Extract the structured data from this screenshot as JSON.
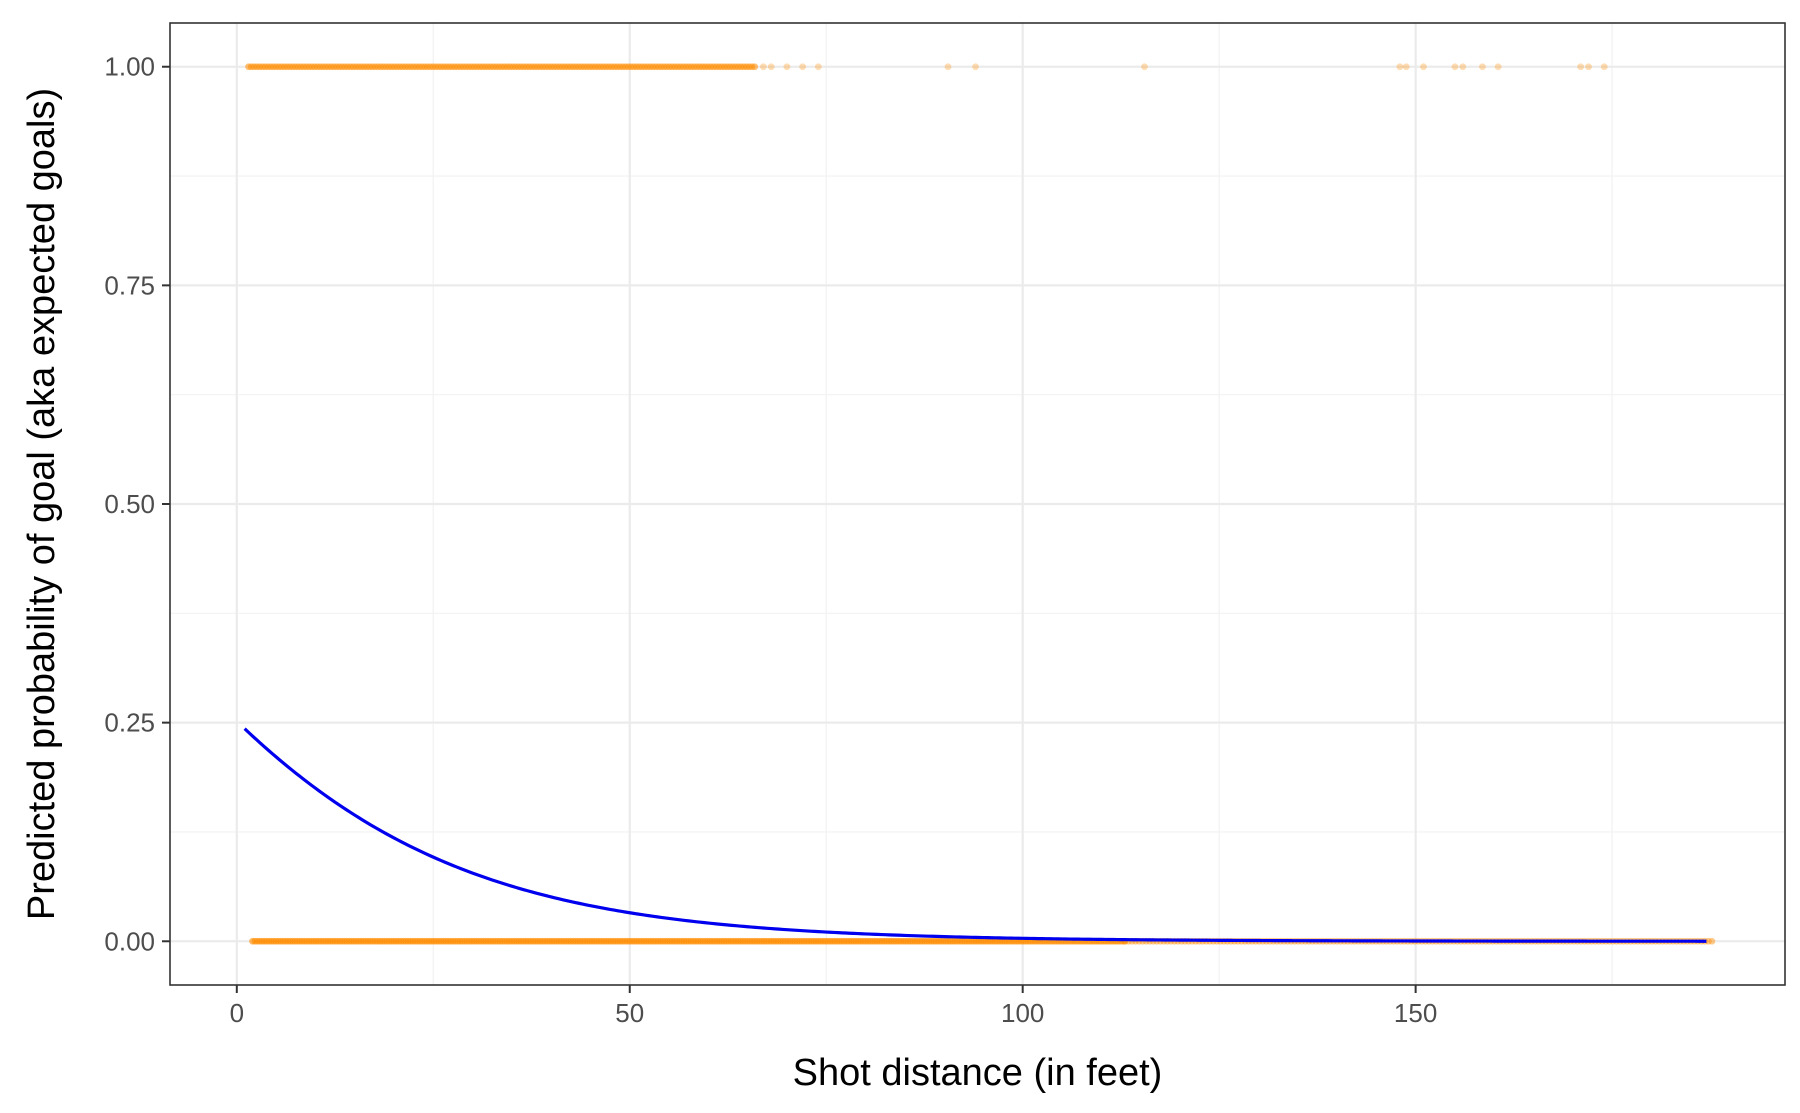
{
  "chart_data": {
    "type": "scatter",
    "title": "",
    "xlabel": "Shot distance (in feet)",
    "ylabel": "Predicted probability of goal (aka expected goals)",
    "xlim": [
      -8.5,
      197
    ],
    "ylim": [
      -0.05,
      1.05
    ],
    "x_ticks": [
      0,
      50,
      100,
      150
    ],
    "x_tick_labels": [
      "0",
      "50",
      "100",
      "150"
    ],
    "y_ticks": [
      0,
      0.25,
      0.5,
      0.75,
      1
    ],
    "y_tick_labels": [
      "0.00",
      "0.25",
      "0.50",
      "0.75",
      "1.00"
    ],
    "x_minor_ticks": [
      25,
      75,
      125,
      175
    ],
    "y_minor_ticks": [
      0.125,
      0.375,
      0.625,
      0.875
    ],
    "grid": true,
    "legend": "none",
    "colors": {
      "points": "#ff8c00",
      "curve": "#0000ee",
      "panel_border": "#333333",
      "grid": "#ebebeb"
    },
    "series": [
      {
        "kind": "points",
        "y": 1,
        "dense_range": [
          1.5,
          66
        ],
        "sparse_x": [
          67,
          68,
          70,
          72,
          74,
          90.5,
          94,
          115.5,
          148,
          148.8,
          151,
          155,
          156,
          158.5,
          160.5,
          171,
          172,
          174
        ]
      },
      {
        "kind": "points",
        "y": 0,
        "dense_range": [
          2,
          113
        ],
        "sparse_range": [
          113,
          188
        ]
      },
      {
        "kind": "logistic-fit",
        "x_range": [
          1,
          187
        ],
        "intercept": -1.09,
        "slope": -0.046,
        "x": [
          1,
          10,
          20,
          30,
          40,
          50,
          60,
          80,
          100,
          125,
          150,
          187
        ],
        "y": [
          0.243,
          0.171,
          0.114,
          0.074,
          0.047,
          0.03,
          0.019,
          0.0076,
          0.003,
          0.00095,
          0.0003,
          6e-05
        ]
      }
    ]
  }
}
